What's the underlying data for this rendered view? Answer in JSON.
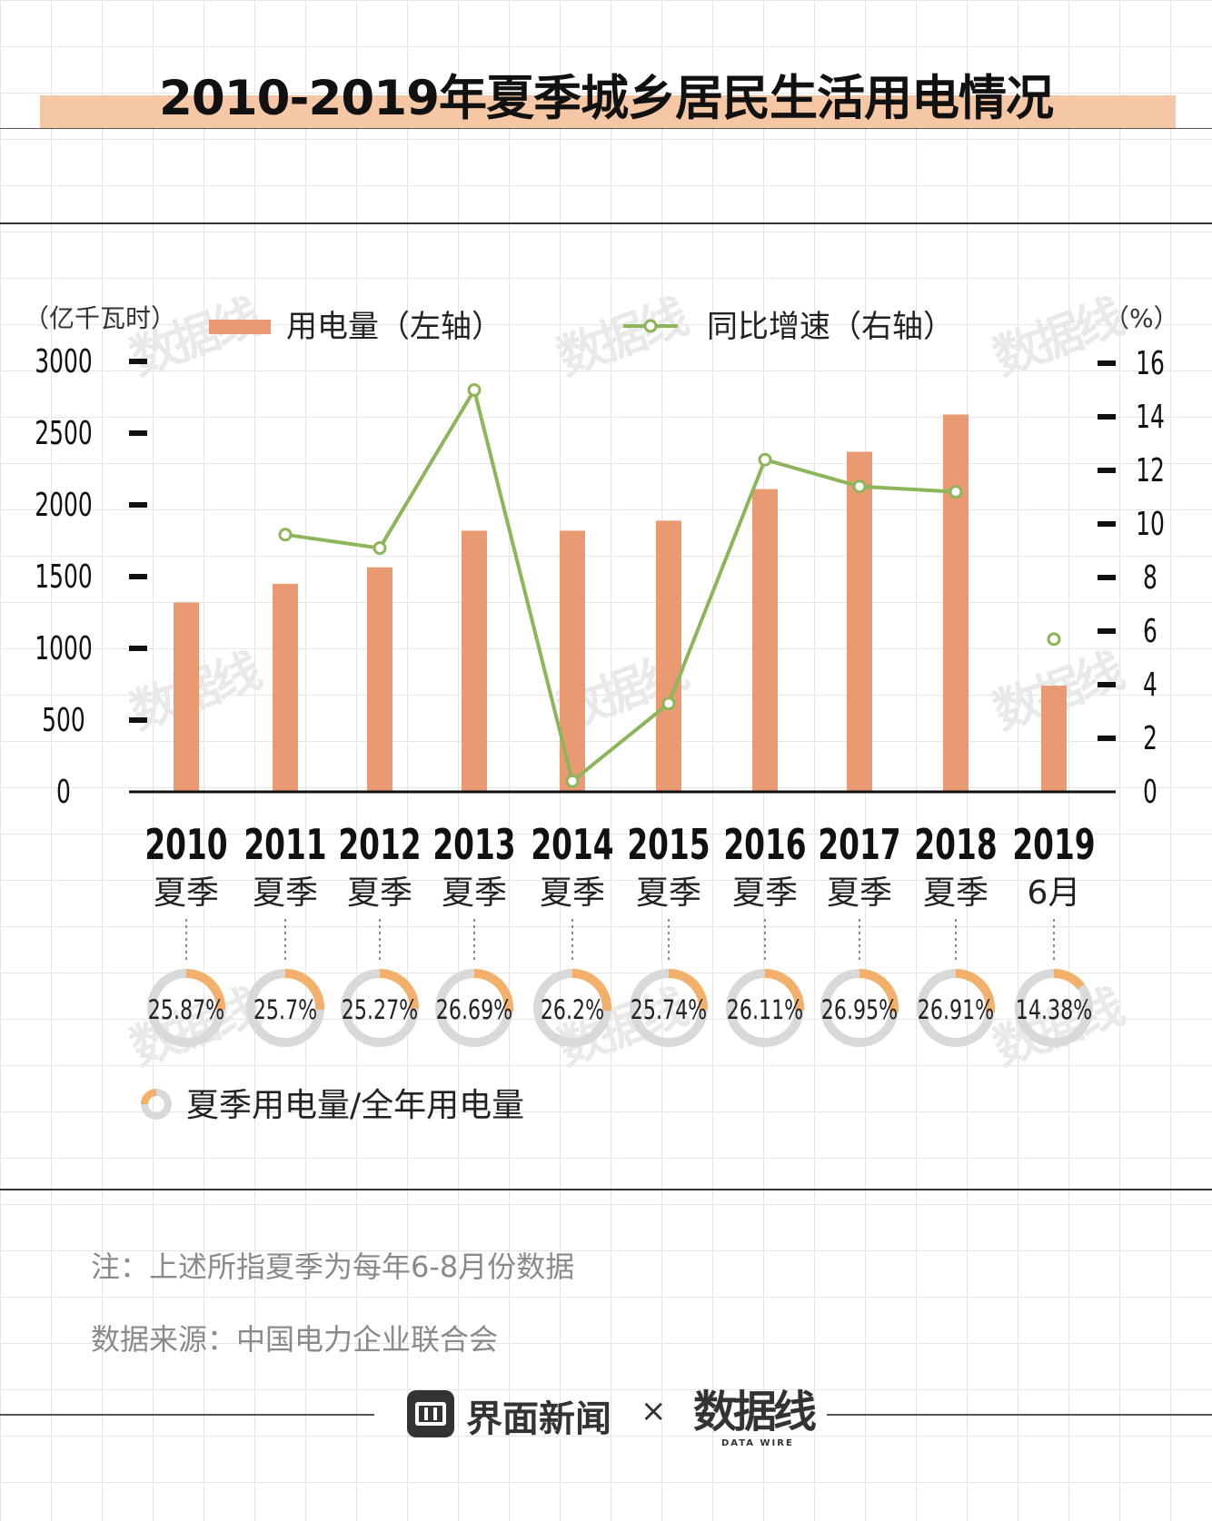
{
  "title": "2010-2019年夏季城乡居民生活用电情况",
  "chart_data": {
    "type": "bar+line",
    "categories": [
      {
        "year": "2010",
        "sub": "夏季"
      },
      {
        "year": "2011",
        "sub": "夏季"
      },
      {
        "year": "2012",
        "sub": "夏季"
      },
      {
        "year": "2013",
        "sub": "夏季"
      },
      {
        "year": "2014",
        "sub": "夏季"
      },
      {
        "year": "2015",
        "sub": "夏季"
      },
      {
        "year": "2016",
        "sub": "夏季"
      },
      {
        "year": "2017",
        "sub": "夏季"
      },
      {
        "year": "2018",
        "sub": "夏季"
      },
      {
        "year": "2019",
        "sub": "6月"
      }
    ],
    "left_unit": "（亿千瓦时）",
    "right_unit": "（%）",
    "left_ticks": [
      "0",
      "500",
      "1000",
      "1500",
      "2000",
      "2500",
      "3000"
    ],
    "right_ticks": [
      "0",
      "2",
      "4",
      "6",
      "8",
      "10",
      "12",
      "14",
      "16"
    ],
    "ylim_left": [
      0,
      3000
    ],
    "ylim_right": [
      0,
      16
    ],
    "series": [
      {
        "name": "用电量（左轴）",
        "type": "bar",
        "axis": "left",
        "color": "#e99a72",
        "values": [
          1320,
          1450,
          1565,
          1820,
          1820,
          1890,
          2110,
          2370,
          2630,
          740
        ]
      },
      {
        "name": "同比增速（右轴）",
        "type": "line",
        "axis": "right",
        "color": "#8db55a",
        "values": [
          null,
          9.6,
          9.1,
          15.0,
          0.4,
          3.3,
          12.4,
          11.4,
          11.2,
          5.7
        ]
      }
    ],
    "shares": [
      "25.87%",
      "25.7%",
      "25.27%",
      "26.69%",
      "26.2%",
      "25.74%",
      "26.11%",
      "26.95%",
      "26.91%",
      "14.38%"
    ],
    "share_values": [
      0.2587,
      0.257,
      0.2527,
      0.2669,
      0.262,
      0.2574,
      0.2611,
      0.2695,
      0.2691,
      0.1438
    ],
    "share_legend": "夏季用电量/全年用电量",
    "share_color": "#f2b06a",
    "ring_color": "#d9d9d9"
  },
  "notes": {
    "note": "注：上述所指夏季为每年6-8月份数据",
    "source": "数据来源：中国电力企业联合会"
  },
  "brand": {
    "jiemian": "界面新闻",
    "times": "×",
    "shujuxian": "数据线",
    "shujuxian_sub": "DATA WIRE"
  },
  "watermark": "数据线"
}
